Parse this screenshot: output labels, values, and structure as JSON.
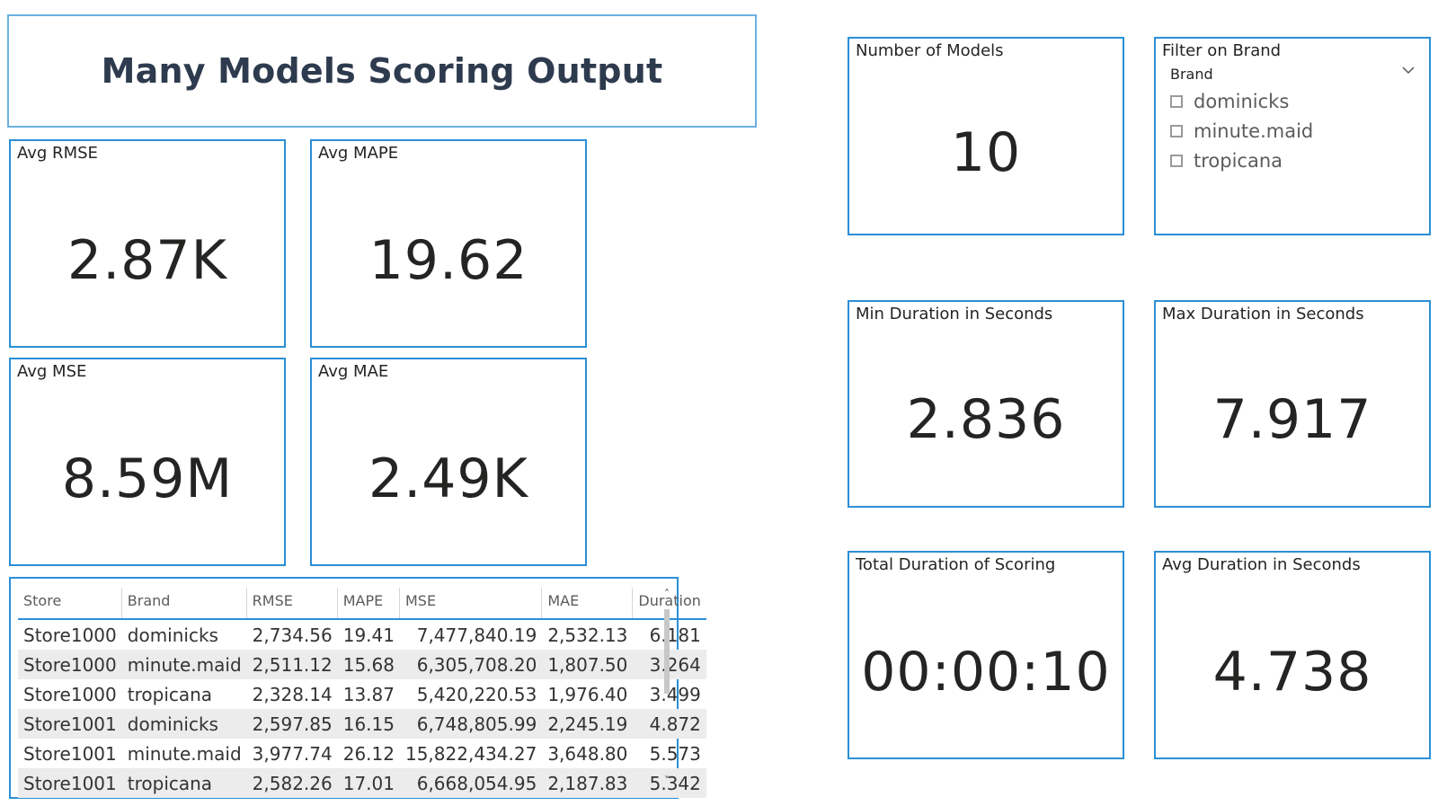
{
  "title": "Many Models Scoring Output",
  "cards": {
    "avg_rmse": {
      "label": "Avg RMSE",
      "value": "2.87K"
    },
    "avg_mape": {
      "label": "Avg MAPE",
      "value": "19.62"
    },
    "avg_mse": {
      "label": "Avg MSE",
      "value": "8.59M"
    },
    "avg_mae": {
      "label": "Avg MAE",
      "value": "2.49K"
    },
    "num_models": {
      "label": "Number of Models",
      "value": "10"
    },
    "min_duration": {
      "label": "Min Duration in Seconds",
      "value": "2.836"
    },
    "max_duration": {
      "label": "Max Duration in Seconds",
      "value": "7.917"
    },
    "total_duration": {
      "label": "Total Duration of Scoring",
      "value": "00:00:10"
    },
    "avg_duration": {
      "label": "Avg Duration in Seconds",
      "value": "4.738"
    }
  },
  "slicer": {
    "label": "Filter on Brand",
    "header": "Brand",
    "options": [
      "dominicks",
      "minute.maid",
      "tropicana"
    ]
  },
  "table": {
    "columns": [
      "Store",
      "Brand",
      "RMSE",
      "MAPE",
      "MSE",
      "MAE",
      "Duration"
    ],
    "rows": [
      [
        "Store1000",
        "dominicks",
        "2,734.56",
        "19.41",
        "7,477,840.19",
        "2,532.13",
        "6.181"
      ],
      [
        "Store1000",
        "minute.maid",
        "2,511.12",
        "15.68",
        "6,305,708.20",
        "1,807.50",
        "3.264"
      ],
      [
        "Store1000",
        "tropicana",
        "2,328.14",
        "13.87",
        "5,420,220.53",
        "1,976.40",
        "3.499"
      ],
      [
        "Store1001",
        "dominicks",
        "2,597.85",
        "16.15",
        "6,748,805.99",
        "2,245.19",
        "4.872"
      ],
      [
        "Store1001",
        "minute.maid",
        "3,977.74",
        "26.12",
        "15,822,434.27",
        "3,648.80",
        "5.573"
      ],
      [
        "Store1001",
        "tropicana",
        "2,582.26",
        "17.01",
        "6,668,054.95",
        "2,187.83",
        "5.342"
      ]
    ]
  },
  "colors": {
    "border": "#2b8fd6",
    "title_text": "#2e3b4e"
  }
}
